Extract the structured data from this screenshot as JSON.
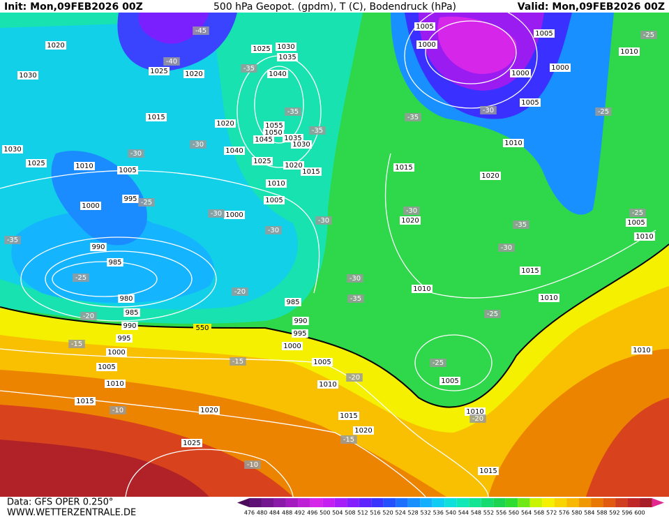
{
  "header": {
    "init": "Init: Mon,09FEB2026 00Z",
    "title": "500 hPa Geopot. (gpdm), T (C), Bodendruck (hPa)",
    "valid": "Valid: Mon,09FEB2026 00Z"
  },
  "footer": {
    "data": "Data: GFS OPER 0.250°",
    "site": "WWW.WETTERZENTRALE.DE"
  },
  "colorbar": {
    "ticks": [
      476,
      480,
      484,
      488,
      492,
      496,
      500,
      504,
      508,
      512,
      516,
      520,
      524,
      528,
      532,
      536,
      540,
      544,
      548,
      552,
      556,
      560,
      564,
      568,
      572,
      576,
      580,
      584,
      588,
      592,
      596,
      600
    ],
    "colors": [
      "#4b0a5a",
      "#5e1276",
      "#741690",
      "#8a1aa8",
      "#a41cc0",
      "#be20d6",
      "#d626ea",
      "#c420f2",
      "#a61ef8",
      "#8420ff",
      "#5e24ff",
      "#3a34ff",
      "#2450ff",
      "#1c70ff",
      "#1890ff",
      "#14b0ff",
      "#10ccf4",
      "#10e0dc",
      "#10e8b8",
      "#12e494",
      "#16dc70",
      "#1cd450",
      "#30dc30",
      "#70e818",
      "#c8f400",
      "#f4f000",
      "#f8d400",
      "#f8b800",
      "#f09800",
      "#e87800",
      "#e05a10",
      "#d03e20",
      "#c02828",
      "#a81e28",
      "#e02890"
    ]
  },
  "map": {
    "isobar_color": "#ffffff",
    "line_550_label": "550",
    "pressure_labels": [
      "1020",
      "1030",
      "1025",
      "1020",
      "1015",
      "1025",
      "1030",
      "1035",
      "1040",
      "1020",
      "1055",
      "1050",
      "1045",
      "1035",
      "1030",
      "1040",
      "1025",
      "1020",
      "1015",
      "1010",
      "1005",
      "1000",
      "1010",
      "1005",
      "1025",
      "1030",
      "1000",
      "995",
      "990",
      "985",
      "980",
      "985",
      "990",
      "995",
      "1000",
      "1005",
      "1010",
      "1015",
      "1020",
      "1025",
      "985",
      "990",
      "995",
      "1000",
      "1005",
      "1010",
      "1015",
      "1020",
      "1015",
      "1010",
      "1005",
      "1010",
      "1015",
      "1010",
      "1010",
      "1015",
      "1020",
      "1020",
      "1010",
      "1005",
      "1000",
      "1000",
      "1005",
      "1010",
      "1005",
      "1010",
      "1005",
      "1000"
    ],
    "temperature_labels": [
      "-45",
      "-40",
      "-35",
      "-35",
      "-35",
      "-30",
      "-30",
      "-25",
      "-30",
      "-30",
      "-30",
      "-35",
      "-25",
      "-20",
      "-20",
      "-15",
      "-15",
      "-20",
      "-10",
      "-10",
      "-15",
      "-20",
      "-25",
      "-25",
      "-30",
      "-35",
      "-30",
      "-35",
      "-30",
      "-30",
      "-35",
      "-25",
      "-25",
      "-25"
    ]
  }
}
